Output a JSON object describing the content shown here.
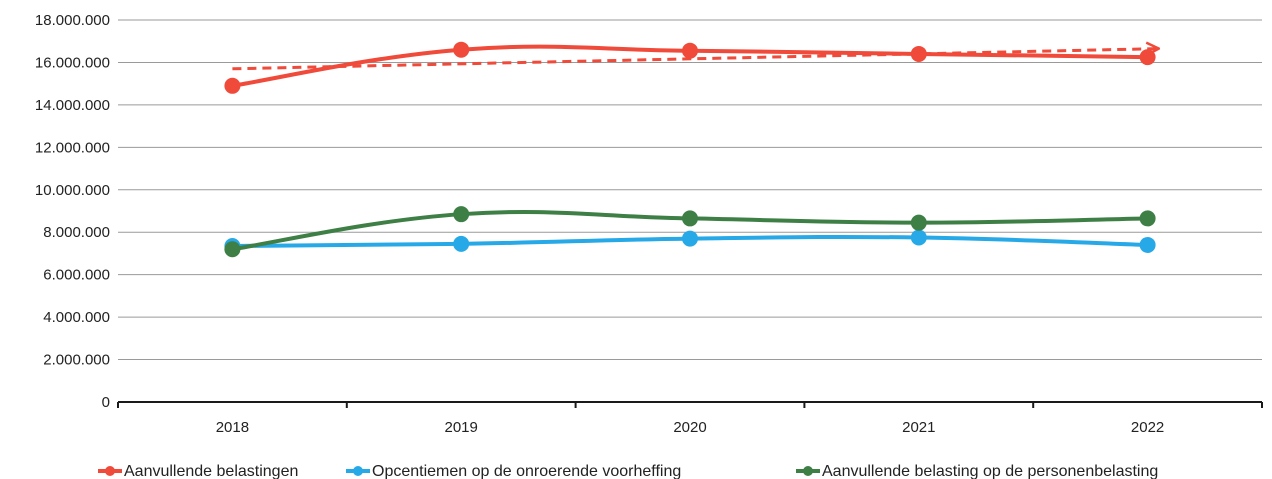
{
  "chart_data": {
    "type": "line",
    "title": "",
    "xlabel": "",
    "ylabel": "",
    "categories": [
      "2018",
      "2019",
      "2020",
      "2021",
      "2022"
    ],
    "ylim": [
      0,
      18000000
    ],
    "y_ticks": [
      0,
      2000000,
      4000000,
      6000000,
      8000000,
      10000000,
      12000000,
      14000000,
      16000000,
      18000000
    ],
    "y_tick_labels": [
      "0",
      "2.000.000",
      "4.000.000",
      "6.000.000",
      "8.000.000",
      "10.000.000",
      "12.000.000",
      "14.000.000",
      "16.000.000",
      "18.000.000"
    ],
    "grid": true,
    "legend_position": "bottom",
    "series": [
      {
        "name": "Aanvullende belastingen",
        "color": "#f04a3a",
        "values": [
          14900000,
          16600000,
          16550000,
          16400000,
          16250000
        ],
        "trendline": {
          "style": "dashed-arrow",
          "values": [
            15700000,
            16650000
          ]
        }
      },
      {
        "name": "Opcentiemen op de onroerende voorheffing",
        "color": "#27a9e8",
        "values": [
          7350000,
          7450000,
          7700000,
          7750000,
          7400000
        ]
      },
      {
        "name": "Aanvullende belasting op de personenbelasting",
        "color": "#3d7f45",
        "values": [
          7200000,
          8850000,
          8650000,
          8450000,
          8650000
        ]
      }
    ]
  }
}
